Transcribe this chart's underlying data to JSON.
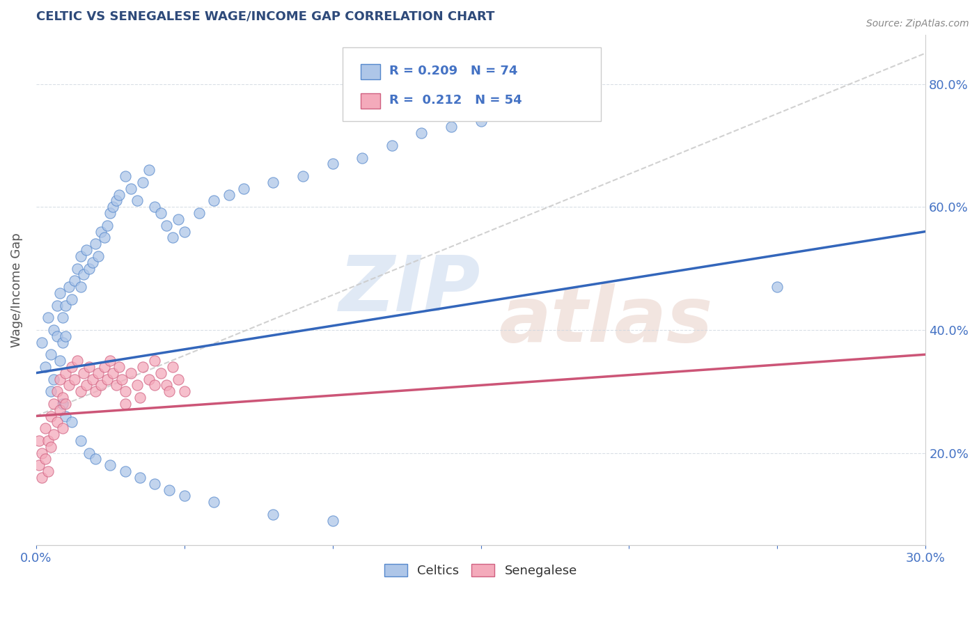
{
  "title": "CELTIC VS SENEGALESE WAGE/INCOME GAP CORRELATION CHART",
  "source_text": "Source: ZipAtlas.com",
  "ylabel": "Wage/Income Gap",
  "x_min": 0.0,
  "x_max": 0.3,
  "y_min": 0.05,
  "y_max": 0.88,
  "y_ticks": [
    0.2,
    0.4,
    0.6,
    0.8
  ],
  "y_tick_labels": [
    "20.0%",
    "40.0%",
    "60.0%",
    "80.0%"
  ],
  "x_ticks": [
    0.0,
    0.05,
    0.1,
    0.15,
    0.2,
    0.25,
    0.3
  ],
  "x_tick_labels": [
    "0.0%",
    "",
    "",
    "",
    "",
    "",
    "30.0%"
  ],
  "celtic_fill": "#aec6e8",
  "celtic_edge": "#5588cc",
  "senegalese_fill": "#f4aabb",
  "senegalese_edge": "#d06080",
  "celtic_line_color": "#3366bb",
  "senegalese_line_color": "#cc5577",
  "gray_dash_color": "#cccccc",
  "legend_R_celtic": "R = 0.209",
  "legend_N_celtic": "N = 74",
  "legend_R_senegalese": "R =  0.212",
  "legend_N_senegalese": "N = 54",
  "title_color": "#2e4a7a",
  "axis_color": "#4472c4",
  "text_color": "#333333",
  "background_color": "#ffffff",
  "celtic_x": [
    0.002,
    0.003,
    0.004,
    0.005,
    0.006,
    0.007,
    0.007,
    0.008,
    0.009,
    0.009,
    0.01,
    0.01,
    0.011,
    0.012,
    0.013,
    0.014,
    0.015,
    0.015,
    0.016,
    0.017,
    0.018,
    0.019,
    0.02,
    0.021,
    0.022,
    0.023,
    0.024,
    0.025,
    0.026,
    0.027,
    0.028,
    0.03,
    0.032,
    0.034,
    0.036,
    0.038,
    0.04,
    0.042,
    0.044,
    0.046,
    0.048,
    0.05,
    0.055,
    0.06,
    0.065,
    0.07,
    0.08,
    0.09,
    0.1,
    0.11,
    0.12,
    0.13,
    0.14,
    0.15,
    0.16,
    0.005,
    0.006,
    0.008,
    0.009,
    0.01,
    0.012,
    0.015,
    0.018,
    0.02,
    0.025,
    0.03,
    0.035,
    0.04,
    0.045,
    0.05,
    0.06,
    0.08,
    0.1,
    0.25
  ],
  "celtic_y": [
    0.38,
    0.34,
    0.42,
    0.36,
    0.4,
    0.44,
    0.39,
    0.46,
    0.38,
    0.42,
    0.44,
    0.39,
    0.47,
    0.45,
    0.48,
    0.5,
    0.52,
    0.47,
    0.49,
    0.53,
    0.5,
    0.51,
    0.54,
    0.52,
    0.56,
    0.55,
    0.57,
    0.59,
    0.6,
    0.61,
    0.62,
    0.65,
    0.63,
    0.61,
    0.64,
    0.66,
    0.6,
    0.59,
    0.57,
    0.55,
    0.58,
    0.56,
    0.59,
    0.61,
    0.62,
    0.63,
    0.64,
    0.65,
    0.67,
    0.68,
    0.7,
    0.72,
    0.73,
    0.74,
    0.75,
    0.3,
    0.32,
    0.35,
    0.28,
    0.26,
    0.25,
    0.22,
    0.2,
    0.19,
    0.18,
    0.17,
    0.16,
    0.15,
    0.14,
    0.13,
    0.12,
    0.1,
    0.09,
    0.47
  ],
  "senegalese_x": [
    0.001,
    0.001,
    0.002,
    0.002,
    0.003,
    0.003,
    0.004,
    0.004,
    0.005,
    0.005,
    0.006,
    0.006,
    0.007,
    0.007,
    0.008,
    0.008,
    0.009,
    0.009,
    0.01,
    0.01,
    0.011,
    0.012,
    0.013,
    0.014,
    0.015,
    0.016,
    0.017,
    0.018,
    0.019,
    0.02,
    0.021,
    0.022,
    0.023,
    0.024,
    0.025,
    0.026,
    0.027,
    0.028,
    0.029,
    0.03,
    0.032,
    0.034,
    0.036,
    0.038,
    0.04,
    0.042,
    0.044,
    0.046,
    0.048,
    0.05,
    0.03,
    0.035,
    0.04,
    0.045
  ],
  "senegalese_y": [
    0.22,
    0.18,
    0.2,
    0.16,
    0.24,
    0.19,
    0.22,
    0.17,
    0.26,
    0.21,
    0.28,
    0.23,
    0.3,
    0.25,
    0.32,
    0.27,
    0.29,
    0.24,
    0.33,
    0.28,
    0.31,
    0.34,
    0.32,
    0.35,
    0.3,
    0.33,
    0.31,
    0.34,
    0.32,
    0.3,
    0.33,
    0.31,
    0.34,
    0.32,
    0.35,
    0.33,
    0.31,
    0.34,
    0.32,
    0.3,
    0.33,
    0.31,
    0.34,
    0.32,
    0.35,
    0.33,
    0.31,
    0.34,
    0.32,
    0.3,
    0.28,
    0.29,
    0.31,
    0.3
  ],
  "celtic_trend_x": [
    0.0,
    0.3
  ],
  "celtic_trend_y": [
    0.33,
    0.56
  ],
  "sene_trend_x": [
    0.0,
    0.3
  ],
  "sene_trend_y": [
    0.26,
    0.36
  ],
  "gray_trend_x": [
    0.0,
    0.3
  ],
  "gray_trend_y": [
    0.26,
    0.85
  ]
}
